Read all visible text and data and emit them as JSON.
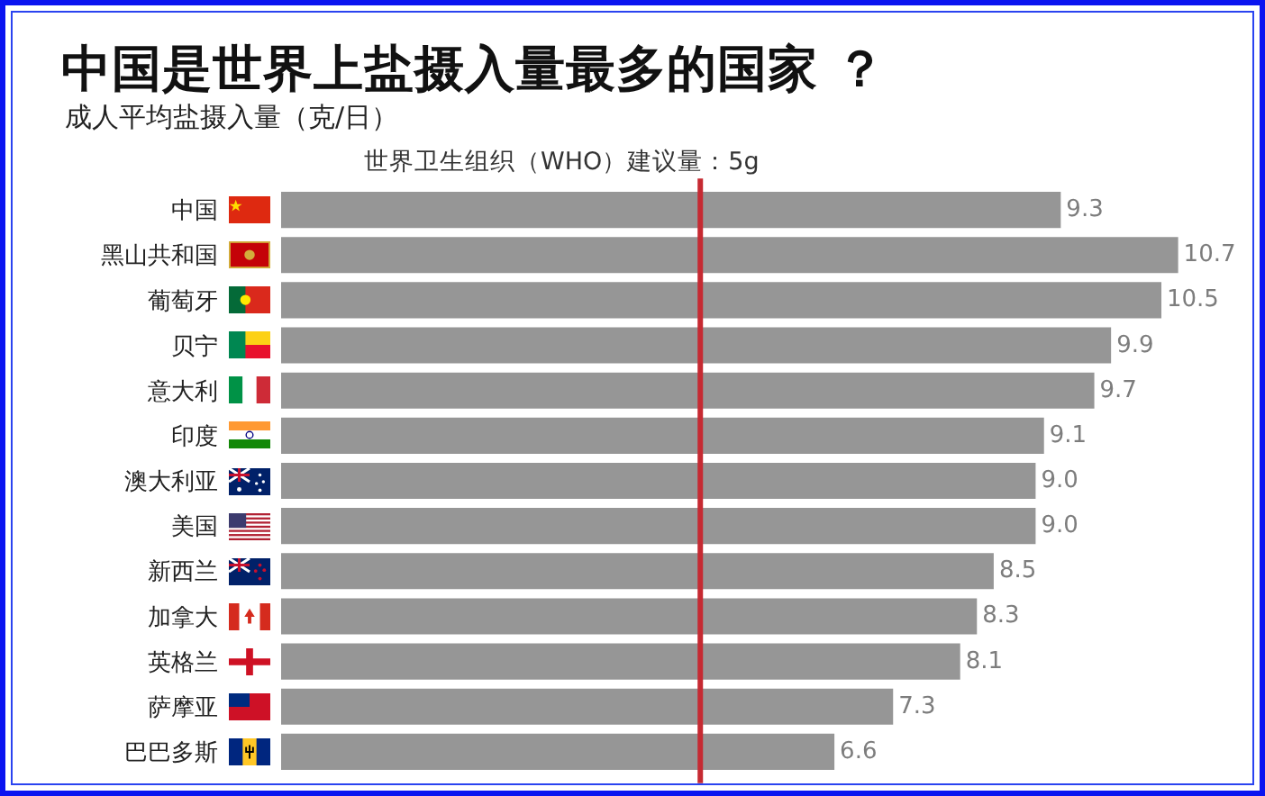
{
  "chart_data": {
    "type": "bar",
    "orientation": "horizontal",
    "title": "中国是世界上盐摄入量最多的国家 ？",
    "subtitle": "成人平均盐摄入量（克/日）",
    "categories": [
      "中国",
      "黑山共和国",
      "葡萄牙",
      "贝宁",
      "意大利",
      "印度",
      "澳大利亚",
      "美国",
      "新西兰",
      "加拿大",
      "英格兰",
      "萨摩亚",
      "巴巴多斯"
    ],
    "values": [
      9.3,
      10.7,
      10.5,
      9.9,
      9.7,
      9.1,
      9.0,
      9.0,
      8.5,
      8.3,
      8.1,
      7.3,
      6.6
    ],
    "value_labels": [
      "9.3",
      "10.7",
      "10.5",
      "9.9",
      "9.7",
      "9.1",
      "9.0",
      "9.0",
      "8.5",
      "8.3",
      "8.1",
      "7.3",
      "6.6"
    ],
    "color": "#969696",
    "ref_lines": [
      {
        "axis": "x",
        "value": 5,
        "label": "世界卫生组织（WHO）建议量：5g",
        "color": "#c62a32"
      }
    ],
    "tick_labels": "y"
  }
}
